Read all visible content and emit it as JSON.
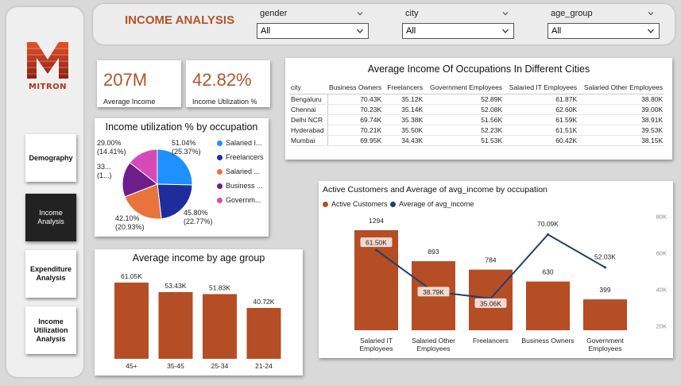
{
  "sidebar": {
    "logo_text": "MITRON",
    "nav": [
      {
        "label": "Demography"
      },
      {
        "label": "Income Analysis"
      },
      {
        "label": "Expenditure Analysis"
      },
      {
        "label": "Income Utilization Analysis"
      }
    ],
    "active_index": 1
  },
  "header": {
    "title": "INCOME ANALYSIS",
    "slicers": [
      {
        "label": "gender",
        "value": "All"
      },
      {
        "label": "city",
        "value": "All"
      },
      {
        "label": "age_group",
        "value": "All"
      }
    ]
  },
  "kpis": [
    {
      "value": "207M",
      "label": "Average Income"
    },
    {
      "value": "42.82%",
      "label": "Income Utilization %"
    }
  ],
  "occupation_table": {
    "title": "Average Income Of Occupations In Different Cities",
    "headers": [
      "city",
      "Business Owners",
      "Freelancers",
      "Government Employees",
      "Salaried IT Employees",
      "Salaried Other Employees"
    ],
    "rows": [
      [
        "Bengaluru",
        "70.43K",
        "35.12K",
        "52.89K",
        "61.87K",
        "38.80K"
      ],
      [
        "Chennai",
        "70.23K",
        "35.14K",
        "52.08K",
        "62.60K",
        "39.00K"
      ],
      [
        "Delhi NCR",
        "69.74K",
        "35.38K",
        "51.56K",
        "61.59K",
        "38.91K"
      ],
      [
        "Hyderabad",
        "70.21K",
        "35.50K",
        "52.23K",
        "61.51K",
        "39.53K"
      ],
      [
        "Mumbai",
        "69.95K",
        "34.43K",
        "51.53K",
        "60.42K",
        "38.15K"
      ]
    ]
  },
  "colors": {
    "accent": "#b0552b",
    "bar": "#b54d25",
    "line": "#1f3f6e",
    "pie": [
      "#1e90ff",
      "#1f2d9c",
      "#e8743b",
      "#6f1d8a",
      "#d64ab8"
    ]
  },
  "chart_data": [
    {
      "type": "pie",
      "title": "Income utilization % by occupation",
      "categories": [
        "Salaried IT Employees",
        "Freelancers",
        "Salaried Other Employees",
        "Business Owners",
        "Government Employees"
      ],
      "legend_labels": [
        "Salaried I...",
        "Freelancers",
        "Salaried ...",
        "Business ...",
        "Governm..."
      ],
      "values": [
        25.37,
        22.77,
        20.93,
        16.5,
        14.41
      ],
      "data_labels": [
        [
          "51.04%",
          "(25.37%)"
        ],
        [
          "45.80%",
          "(22.77%)"
        ],
        [
          "42.10%",
          "(20.93%)"
        ],
        [
          "33...",
          "(1...)"
        ],
        [
          "29.00%",
          "(14.41%)"
        ]
      ],
      "legend": "right"
    },
    {
      "type": "bar",
      "title": "Average income by age group",
      "categories": [
        "45+",
        "35-45",
        "25-34",
        "21-24"
      ],
      "values": [
        61050,
        53430,
        51830,
        40720
      ],
      "value_labels": [
        "61.05K",
        "53.43K",
        "51.83K",
        "40.72K"
      ]
    },
    {
      "type": "bar",
      "title": "Active Customers and Average of avg_income by occupation",
      "categories": [
        "Salaried IT Employees",
        "Salaried Other Employees",
        "Freelancers",
        "Business Owners",
        "Government Employees"
      ],
      "series": [
        {
          "name": "Active Customers",
          "type": "bar",
          "values": [
            1294,
            893,
            784,
            630,
            399
          ]
        },
        {
          "name": "Average of avg_income",
          "type": "line",
          "values": [
            61500,
            38790,
            35060,
            70090,
            52030
          ],
          "value_labels": [
            "61.50K",
            "38.79K",
            "35.06K",
            "70.09K",
            "52.03K"
          ]
        }
      ],
      "y2_ticks": [
        "80K",
        "60K",
        "40K",
        "20K"
      ],
      "y2lim": [
        15000,
        82000
      ],
      "legend": "top-left"
    }
  ]
}
